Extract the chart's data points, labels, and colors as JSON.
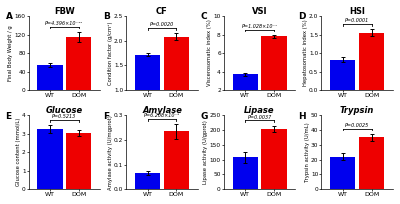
{
  "panels": [
    {
      "label": "A",
      "title": "FBW",
      "ylabel": "Final Body Weight / g",
      "categories": [
        "WT",
        "DOM"
      ],
      "values": [
        54,
        115
      ],
      "errors": [
        4,
        11
      ],
      "ylim": [
        0,
        160
      ],
      "yticks": [
        0,
        40,
        80,
        120,
        160
      ],
      "pvalue": "P=4.396×10⁻¹²",
      "bar_colors": [
        "#0000ee",
        "#ee0000"
      ],
      "italic_title": false,
      "row": 0,
      "col": 0
    },
    {
      "label": "B",
      "title": "CF",
      "ylabel": "Condition factor (g/cm³)",
      "categories": [
        "WT",
        "DOM"
      ],
      "values": [
        1.72,
        2.08
      ],
      "errors": [
        0.04,
        0.07
      ],
      "ylim": [
        1.0,
        2.5
      ],
      "yticks": [
        1.0,
        1.5,
        2.0,
        2.5
      ],
      "pvalue": "P=0.0020",
      "bar_colors": [
        "#0000ee",
        "#ee0000"
      ],
      "italic_title": false,
      "row": 0,
      "col": 1
    },
    {
      "label": "C",
      "title": "VSI",
      "ylabel": "Viscerosomatic index (%)",
      "categories": [
        "WT",
        "DOM"
      ],
      "values": [
        3.7,
        7.8
      ],
      "errors": [
        0.18,
        0.18
      ],
      "ylim": [
        2,
        10
      ],
      "yticks": [
        2,
        4,
        6,
        8,
        10
      ],
      "pvalue": "P=1.028×10⁻⁷",
      "bar_colors": [
        "#0000ee",
        "#ee0000"
      ],
      "italic_title": false,
      "row": 0,
      "col": 2
    },
    {
      "label": "D",
      "title": "HSI",
      "ylabel": "Hepatosomatic index (%)",
      "categories": [
        "WT",
        "DOM"
      ],
      "values": [
        0.82,
        1.55
      ],
      "errors": [
        0.07,
        0.09
      ],
      "ylim": [
        0.0,
        2.0
      ],
      "yticks": [
        0.0,
        0.5,
        1.0,
        1.5,
        2.0
      ],
      "pvalue": "P=0.0001",
      "bar_colors": [
        "#0000ee",
        "#ee0000"
      ],
      "italic_title": false,
      "row": 0,
      "col": 3
    },
    {
      "label": "E",
      "title": "Glucose",
      "ylabel": "Glucose content (mmol/L)",
      "categories": [
        "WT",
        "DOM"
      ],
      "values": [
        3.25,
        3.05
      ],
      "errors": [
        0.22,
        0.15
      ],
      "ylim": [
        0,
        4
      ],
      "yticks": [
        0,
        1,
        2,
        3,
        4
      ],
      "pvalue": "P=0.5213",
      "bar_colors": [
        "#0000ee",
        "#ee0000"
      ],
      "italic_title": true,
      "row": 1,
      "col": 0
    },
    {
      "label": "F",
      "title": "Amylase",
      "ylabel": "Amylase activity (U/mgprot)",
      "categories": [
        "WT",
        "DOM"
      ],
      "values": [
        0.065,
        0.235
      ],
      "errors": [
        0.008,
        0.03
      ],
      "ylim": [
        0.0,
        0.3
      ],
      "yticks": [
        0.0,
        0.1,
        0.2,
        0.3
      ],
      "pvalue": "P=6.208×10⁻⁵",
      "bar_colors": [
        "#0000ee",
        "#ee0000"
      ],
      "italic_title": true,
      "row": 1,
      "col": 1
    },
    {
      "label": "G",
      "title": "Lipase",
      "ylabel": "Lipase activity (U/gprot)",
      "categories": [
        "WT",
        "DOM"
      ],
      "values": [
        108,
        205
      ],
      "errors": [
        18,
        10
      ],
      "ylim": [
        0,
        250
      ],
      "yticks": [
        0,
        50,
        100,
        150,
        200,
        250
      ],
      "pvalue": "P=0.0037",
      "bar_colors": [
        "#0000ee",
        "#ee0000"
      ],
      "italic_title": true,
      "row": 1,
      "col": 2
    },
    {
      "label": "H",
      "title": "Trypsin",
      "ylabel": "Trypsin activity (U/mL)",
      "categories": [
        "WT",
        "DOM"
      ],
      "values": [
        22,
        35
      ],
      "errors": [
        2.5,
        2.5
      ],
      "ylim": [
        0,
        50
      ],
      "yticks": [
        0,
        10,
        20,
        30,
        40,
        50
      ],
      "pvalue": "P=0.0025",
      "bar_colors": [
        "#0000ee",
        "#ee0000"
      ],
      "italic_title": true,
      "row": 1,
      "col": 3
    }
  ],
  "bg_color": "#ffffff",
  "bar_width": 0.35,
  "figsize": [
    4.0,
    2.04
  ],
  "dpi": 100
}
